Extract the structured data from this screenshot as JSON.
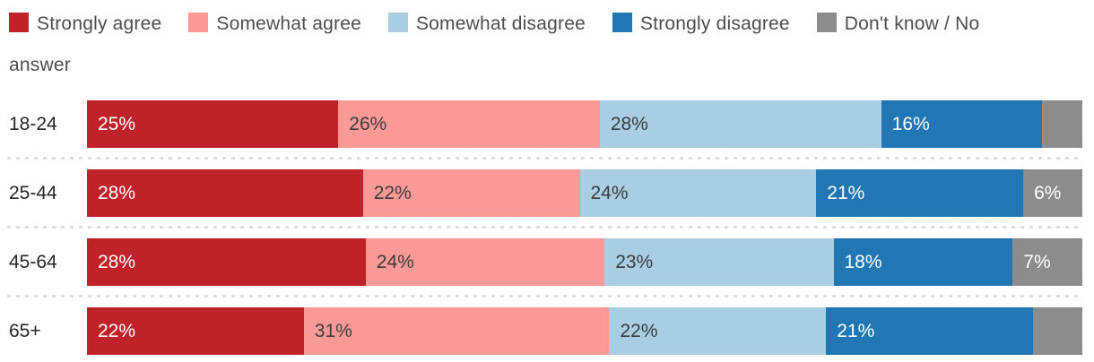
{
  "colors": {
    "background": "#ffffff",
    "legend_text": "#4d4d4d",
    "category_text": "#262626",
    "label_on_dark": "#ffffff",
    "label_on_light": "#3c3c3c",
    "separator_dot": "#dcdcdc"
  },
  "series_styles": {
    "strongly_agree": {
      "color": "#c0222a",
      "label_color": "#ffffff"
    },
    "somewhat_agree": {
      "color": "#fb9997",
      "label_color": "#3c3c3c"
    },
    "somewhat_disagree": {
      "color": "#a9cee4",
      "label_color": "#3c3c3c"
    },
    "strongly_disagree": {
      "color": "#2177b4",
      "label_color": "#ffffff"
    },
    "dont_know": {
      "color": "#8c8c8c",
      "label_color": "#ffffff"
    }
  },
  "legend": {
    "items": [
      {
        "key": "strongly_agree",
        "label": "Strongly agree"
      },
      {
        "key": "somewhat_agree",
        "label": "Somewhat agree"
      },
      {
        "key": "somewhat_disagree",
        "label": "Somewhat disagree"
      },
      {
        "key": "strongly_disagree",
        "label": "Strongly disagree"
      },
      {
        "key": "dont_know",
        "label": "Don't know / No answer"
      }
    ]
  },
  "chart_data": {
    "type": "bar",
    "orientation": "horizontal_stacked",
    "unit": "%",
    "legend_position": "top",
    "value_labels_shown": true,
    "categories": [
      "18-24",
      "25-44",
      "45-64",
      "65+"
    ],
    "series": [
      {
        "name": "Strongly agree",
        "values": [
          25,
          28,
          28,
          22
        ]
      },
      {
        "name": "Somewhat agree",
        "values": [
          26,
          22,
          24,
          31
        ]
      },
      {
        "name": "Somewhat disagree",
        "values": [
          28,
          24,
          23,
          22
        ]
      },
      {
        "name": "Strongly disagree",
        "values": [
          16,
          21,
          18,
          21
        ]
      },
      {
        "name": "Don't know / No answer",
        "values": [
          4,
          6,
          7,
          5
        ]
      }
    ]
  },
  "rows": [
    {
      "category": "18-24",
      "segments": [
        {
          "key": "strongly_agree",
          "value": 25,
          "label": "25%"
        },
        {
          "key": "somewhat_agree",
          "value": 26,
          "label": "26%"
        },
        {
          "key": "somewhat_disagree",
          "value": 28,
          "label": "28%"
        },
        {
          "key": "strongly_disagree",
          "value": 16,
          "label": "16%"
        },
        {
          "key": "dont_know",
          "value": 4,
          "label": ""
        }
      ]
    },
    {
      "category": "25-44",
      "segments": [
        {
          "key": "strongly_agree",
          "value": 28,
          "label": "28%"
        },
        {
          "key": "somewhat_agree",
          "value": 22,
          "label": "22%"
        },
        {
          "key": "somewhat_disagree",
          "value": 24,
          "label": "24%"
        },
        {
          "key": "strongly_disagree",
          "value": 21,
          "label": "21%"
        },
        {
          "key": "dont_know",
          "value": 6,
          "label": "6%"
        }
      ]
    },
    {
      "category": "45-64",
      "segments": [
        {
          "key": "strongly_agree",
          "value": 28,
          "label": "28%"
        },
        {
          "key": "somewhat_agree",
          "value": 24,
          "label": "24%"
        },
        {
          "key": "somewhat_disagree",
          "value": 23,
          "label": "23%"
        },
        {
          "key": "strongly_disagree",
          "value": 18,
          "label": "18%"
        },
        {
          "key": "dont_know",
          "value": 7,
          "label": "7%"
        }
      ]
    },
    {
      "category": "65+",
      "segments": [
        {
          "key": "strongly_agree",
          "value": 22,
          "label": "22%"
        },
        {
          "key": "somewhat_agree",
          "value": 31,
          "label": "31%"
        },
        {
          "key": "somewhat_disagree",
          "value": 22,
          "label": "22%"
        },
        {
          "key": "strongly_disagree",
          "value": 21,
          "label": "21%"
        },
        {
          "key": "dont_know",
          "value": 5,
          "label": ""
        }
      ]
    }
  ]
}
